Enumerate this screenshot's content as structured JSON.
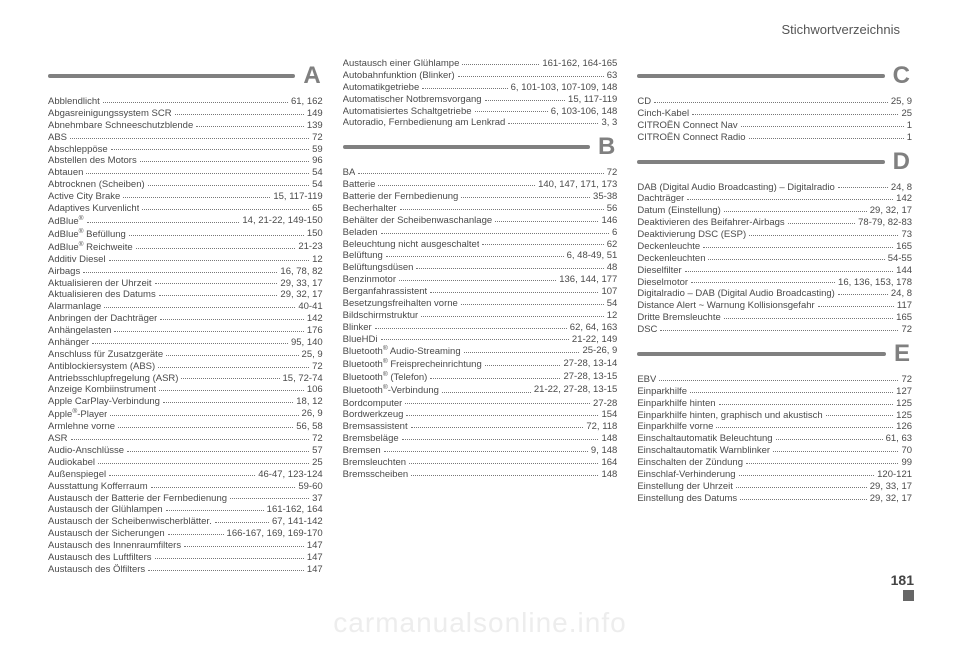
{
  "header": {
    "title": "Stichwortverzeichnis"
  },
  "page_number": "181",
  "watermark": "carmanualsonline.info",
  "colors": {
    "text": "#4a4a4a",
    "rule": "#808080",
    "letter": "#808080",
    "background": "#ffffff",
    "watermark": "#ededed"
  },
  "sections": [
    {
      "letter": "A",
      "column": 0,
      "entries": [
        {
          "term": "Abblendlicht",
          "pages": "61, 162"
        },
        {
          "term": "Abgasreinigungssystem SCR",
          "pages": "149"
        },
        {
          "term": "Abnehmbare Schneeschutzblende",
          "pages": "139"
        },
        {
          "term": "ABS",
          "pages": "72"
        },
        {
          "term": "Abschleppöse",
          "pages": "59"
        },
        {
          "term": "Abstellen des Motors",
          "pages": "96"
        },
        {
          "term": "Abtauen",
          "pages": "54"
        },
        {
          "term": "Abtrocknen (Scheiben)",
          "pages": "54"
        },
        {
          "term": "Active City Brake",
          "pages": "15, 117-119"
        },
        {
          "term": "Adaptives Kurvenlicht",
          "pages": "65"
        },
        {
          "term": "AdBlue<sup>®</sup>",
          "pages": "14, 21-22, 149-150"
        },
        {
          "term": "AdBlue<sup>®</sup> Befüllung",
          "pages": "150"
        },
        {
          "term": "AdBlue<sup>®</sup> Reichweite",
          "pages": "21-23"
        },
        {
          "term": "Additiv Diesel",
          "pages": "12"
        },
        {
          "term": "Airbags",
          "pages": "16, 78, 82"
        },
        {
          "term": "Aktualisieren der Uhrzeit",
          "pages": "29, 33, 17"
        },
        {
          "term": "Aktualisieren des Datums",
          "pages": "29, 32, 17"
        },
        {
          "term": "Alarmanlage",
          "pages": "40-41"
        },
        {
          "term": "Anbringen der Dachträger",
          "pages": "142"
        },
        {
          "term": "Anhängelasten",
          "pages": "176"
        },
        {
          "term": "Anhänger",
          "pages": "95, 140"
        },
        {
          "term": "Anschluss für Zusatzgeräte",
          "pages": "25, 9"
        },
        {
          "term": "Antiblockiersystem (ABS)",
          "pages": "72"
        },
        {
          "term": "Antriebsschlupfregelung (ASR)",
          "pages": "15, 72-74"
        },
        {
          "term": "Anzeige Kombiinstrument",
          "pages": "106"
        },
        {
          "term": "Apple CarPlay-Verbindung",
          "pages": "18, 12"
        },
        {
          "term": "Apple<sup>®</sup>-Player",
          "pages": "26, 9"
        },
        {
          "term": "Armlehne vorne",
          "pages": "56, 58"
        },
        {
          "term": "ASR",
          "pages": "72"
        },
        {
          "term": "Audio-Anschlüsse",
          "pages": "57"
        },
        {
          "term": "Audiokabel",
          "pages": "25"
        },
        {
          "term": "Außenspiegel",
          "pages": "46-47, 123-124"
        },
        {
          "term": "Ausstattung Kofferraum",
          "pages": "59-60"
        },
        {
          "term": "Austausch der Batterie der Fernbedienung",
          "pages": "37"
        },
        {
          "term": "Austausch der Glühlampen",
          "pages": "161-162, 164"
        },
        {
          "term": "Austausch der Scheibenwischerblätter.",
          "pages": "67, 141-142"
        },
        {
          "term": "Austausch der Sicherungen",
          "pages": "166-167, 169, 169-170"
        },
        {
          "term": "Austausch des Innenraumfilters",
          "pages": "147"
        },
        {
          "term": "Austausch des Luftfilters",
          "pages": "147"
        },
        {
          "term": "Austausch des Ölfilters",
          "pages": "147"
        }
      ]
    },
    {
      "letter": "",
      "column": 1,
      "entries": [
        {
          "term": "Austausch einer Glühlampe",
          "pages": "161-162, 164-165"
        },
        {
          "term": "Autobahnfunktion (Blinker)",
          "pages": "63"
        },
        {
          "term": "Automatikgetriebe",
          "pages": "6, 101-103, 107-109, 148"
        },
        {
          "term": "Automatischer Notbremsvorgang",
          "pages": "15, 117-119"
        },
        {
          "term": "Automatisiertes Schaltgetriebe",
          "pages": "6, 103-106, 148"
        },
        {
          "term": "Autoradio, Fernbedienung am Lenkrad",
          "pages": "3, 3"
        }
      ]
    },
    {
      "letter": "B",
      "column": 1,
      "entries": [
        {
          "term": "BA",
          "pages": "72"
        },
        {
          "term": "Batterie",
          "pages": "140, 147, 171, 173"
        },
        {
          "term": "Batterie der Fernbedienung",
          "pages": "35-38"
        },
        {
          "term": "Becherhalter",
          "pages": "56"
        },
        {
          "term": "Behälter der Scheibenwaschanlage",
          "pages": "146"
        },
        {
          "term": "Beladen",
          "pages": "6"
        },
        {
          "term": "Beleuchtung nicht ausgeschaltet",
          "pages": "62"
        },
        {
          "term": "Belüftung",
          "pages": "6, 48-49, 51"
        },
        {
          "term": "Belüftungsdüsen",
          "pages": "48"
        },
        {
          "term": "Benzinmotor",
          "pages": "136, 144, 177"
        },
        {
          "term": "Berganfahrassistent",
          "pages": "107"
        },
        {
          "term": "Besetzungsfreihalten vorne",
          "pages": "54"
        },
        {
          "term": "Bildschirmstruktur",
          "pages": "12"
        },
        {
          "term": "Blinker",
          "pages": "62, 64, 163"
        },
        {
          "term": "BlueHDi",
          "pages": "21-22, 149"
        },
        {
          "term": "Bluetooth<sup>®</sup> Audio-Streaming",
          "pages": "25-26, 9"
        },
        {
          "term": "Bluetooth<sup>®</sup> Freisprecheinrichtung",
          "pages": "27-28, 13-14"
        },
        {
          "term": "Bluetooth<sup>®</sup> (Telefon)",
          "pages": "27-28, 13-15"
        },
        {
          "term": "Bluetooth<sup>®</sup>-Verbindung",
          "pages": "21-22, 27-28, 13-15"
        },
        {
          "term": "Bordcomputer",
          "pages": "27-28"
        },
        {
          "term": "Bordwerkzeug",
          "pages": "154"
        },
        {
          "term": "Bremsassistent",
          "pages": "72, 118"
        },
        {
          "term": "Bremsbeläge",
          "pages": "148"
        },
        {
          "term": "Bremsen",
          "pages": "9, 148"
        },
        {
          "term": "Bremsleuchten",
          "pages": "164"
        },
        {
          "term": "Bremsscheiben",
          "pages": "148"
        }
      ]
    },
    {
      "letter": "C",
      "column": 2,
      "entries": [
        {
          "term": "CD",
          "pages": "25, 9"
        },
        {
          "term": "Cinch-Kabel",
          "pages": "25"
        },
        {
          "term": "CITROËN Connect Nav",
          "pages": "1"
        },
        {
          "term": "CITROËN Connect Radio",
          "pages": "1"
        }
      ]
    },
    {
      "letter": "D",
      "column": 2,
      "entries": [
        {
          "term": "DAB (Digital Audio Broadcasting) – Digitalradio",
          "pages": "24, 8"
        },
        {
          "term": "Dachträger",
          "pages": "142"
        },
        {
          "term": "Datum (Einstellung)",
          "pages": "29, 32, 17"
        },
        {
          "term": "Deaktivieren des Beifahrer-Airbags",
          "pages": "78-79, 82-83"
        },
        {
          "term": "Deaktivierung DSC (ESP)",
          "pages": "73"
        },
        {
          "term": "Deckenleuchte",
          "pages": "165"
        },
        {
          "term": "Deckenleuchten",
          "pages": "54-55"
        },
        {
          "term": "Dieselfilter",
          "pages": "144"
        },
        {
          "term": "Dieselmotor",
          "pages": "16, 136, 153, 178"
        },
        {
          "term": "Digitalradio – DAB (Digital Audio Broadcasting)",
          "pages": "24, 8"
        },
        {
          "term": "Distance Alert ~ Warnung Kollisionsgefahr",
          "pages": "117"
        },
        {
          "term": "Dritte Bremsleuchte",
          "pages": "165"
        },
        {
          "term": "DSC",
          "pages": "72"
        }
      ]
    },
    {
      "letter": "E",
      "column": 2,
      "entries": [
        {
          "term": "EBV",
          "pages": "72"
        },
        {
          "term": "Einparkhilfe",
          "pages": "127"
        },
        {
          "term": "Einparkhilfe hinten",
          "pages": "125"
        },
        {
          "term": "Einparkhilfe hinten, graphisch und akustisch",
          "pages": "125"
        },
        {
          "term": "Einparkhilfe vorne",
          "pages": "126"
        },
        {
          "term": "Einschaltautomatik Beleuchtung",
          "pages": "61, 63"
        },
        {
          "term": "Einschaltautomatik Warnblinker",
          "pages": "70"
        },
        {
          "term": "Einschalten der Zündung",
          "pages": "99"
        },
        {
          "term": "Einschlaf-Verhinderung",
          "pages": "120-121"
        },
        {
          "term": "Einstellung der Uhrzeit",
          "pages": "29, 33, 17"
        },
        {
          "term": "Einstellung des Datums",
          "pages": "29, 32, 17"
        }
      ]
    }
  ]
}
